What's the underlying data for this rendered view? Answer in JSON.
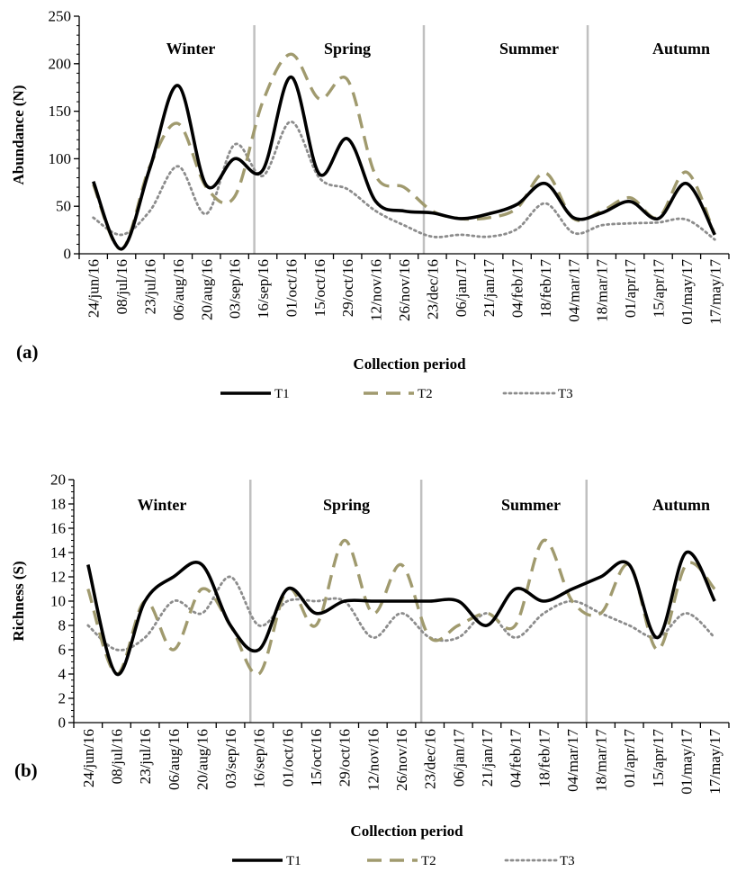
{
  "chart_data": [
    {
      "type": "line",
      "panel_label": "(a)",
      "title": "",
      "xlabel": "Collection period",
      "ylabel": "Abundance (N)",
      "ylim": [
        0,
        250
      ],
      "yticks": [
        0,
        50,
        100,
        150,
        200,
        250
      ],
      "grid": false,
      "legend_position": "bottom",
      "categories": [
        "24/jun/16",
        "08/jul/16",
        "23/jul/16",
        "06/aug/16",
        "20/aug/16",
        "03/sep/16",
        "16/sep/16",
        "01/oct/16",
        "15/oct/16",
        "29/oct/16",
        "12/nov/16",
        "26/nov/16",
        "23/dec/16",
        "06/jan/17",
        "21/jan/17",
        "04/feb/17",
        "18/feb/17",
        "04/mar/17",
        "18/mar/17",
        "01/apr/17",
        "15/apr/17",
        "01/may/17",
        "17/may/17"
      ],
      "seasons": [
        "Winter",
        "Spring",
        "Summer",
        "Autumn"
      ],
      "series": [
        {
          "name": "T1",
          "color": "#000000",
          "style": "solid",
          "values": [
            76,
            5,
            90,
            177,
            72,
            100,
            88,
            186,
            84,
            121,
            55,
            45,
            43,
            37,
            42,
            52,
            74,
            38,
            43,
            55,
            37,
            74,
            20
          ]
        },
        {
          "name": "T2",
          "color": "#a09a6e",
          "style": "dashed",
          "values": [
            73,
            5,
            92,
            137,
            70,
            60,
            160,
            210,
            163,
            183,
            82,
            70,
            45,
            37,
            38,
            48,
            85,
            37,
            45,
            59,
            38,
            86,
            20
          ]
        },
        {
          "name": "T3",
          "color": "#8c8c8c",
          "style": "dotted",
          "values": [
            38,
            20,
            45,
            92,
            42,
            115,
            82,
            139,
            80,
            68,
            45,
            30,
            18,
            20,
            18,
            26,
            53,
            22,
            30,
            32,
            33,
            36,
            15
          ]
        }
      ]
    },
    {
      "type": "line",
      "panel_label": "(b)",
      "title": "",
      "xlabel": "Collection period",
      "ylabel": "Richness (S)",
      "ylim": [
        0,
        20
      ],
      "yticks": [
        0,
        2,
        4,
        6,
        8,
        10,
        12,
        14,
        16,
        18,
        20
      ],
      "grid": false,
      "legend_position": "bottom",
      "categories": [
        "24/jun/16",
        "08/jul/16",
        "23/jul/16",
        "06/aug/16",
        "20/aug/16",
        "03/sep/16",
        "16/sep/16",
        "01/oct/16",
        "15/oct/16",
        "29/oct/16",
        "12/nov/16",
        "26/nov/16",
        "23/dec/16",
        "06/jan/17",
        "21/jan/17",
        "04/feb/17",
        "18/feb/17",
        "04/mar/17",
        "18/mar/17",
        "01/apr/17",
        "15/apr/17",
        "01/may/17",
        "17/may/17"
      ],
      "seasons": [
        "Winter",
        "Spring",
        "Summer",
        "Autumn"
      ],
      "series": [
        {
          "name": "T1",
          "color": "#000000",
          "style": "solid",
          "values": [
            13,
            4,
            10,
            12,
            13,
            8,
            6,
            11,
            9,
            10,
            10,
            10,
            10,
            10,
            8,
            11,
            10,
            11,
            12,
            13,
            7,
            14,
            10
          ]
        },
        {
          "name": "T2",
          "color": "#a09a6e",
          "style": "dashed",
          "values": [
            11,
            4,
            10,
            6,
            11,
            8,
            4,
            11,
            8,
            15,
            9,
            13,
            7,
            8,
            9,
            8,
            15,
            10,
            9,
            13,
            6,
            13,
            11
          ]
        },
        {
          "name": "T3",
          "color": "#8c8c8c",
          "style": "dotted",
          "values": [
            8,
            6,
            7,
            10,
            9,
            12,
            8,
            10,
            10,
            10,
            7,
            9,
            7,
            7,
            9,
            7,
            9,
            10,
            9,
            8,
            7,
            9,
            7
          ]
        }
      ]
    }
  ]
}
